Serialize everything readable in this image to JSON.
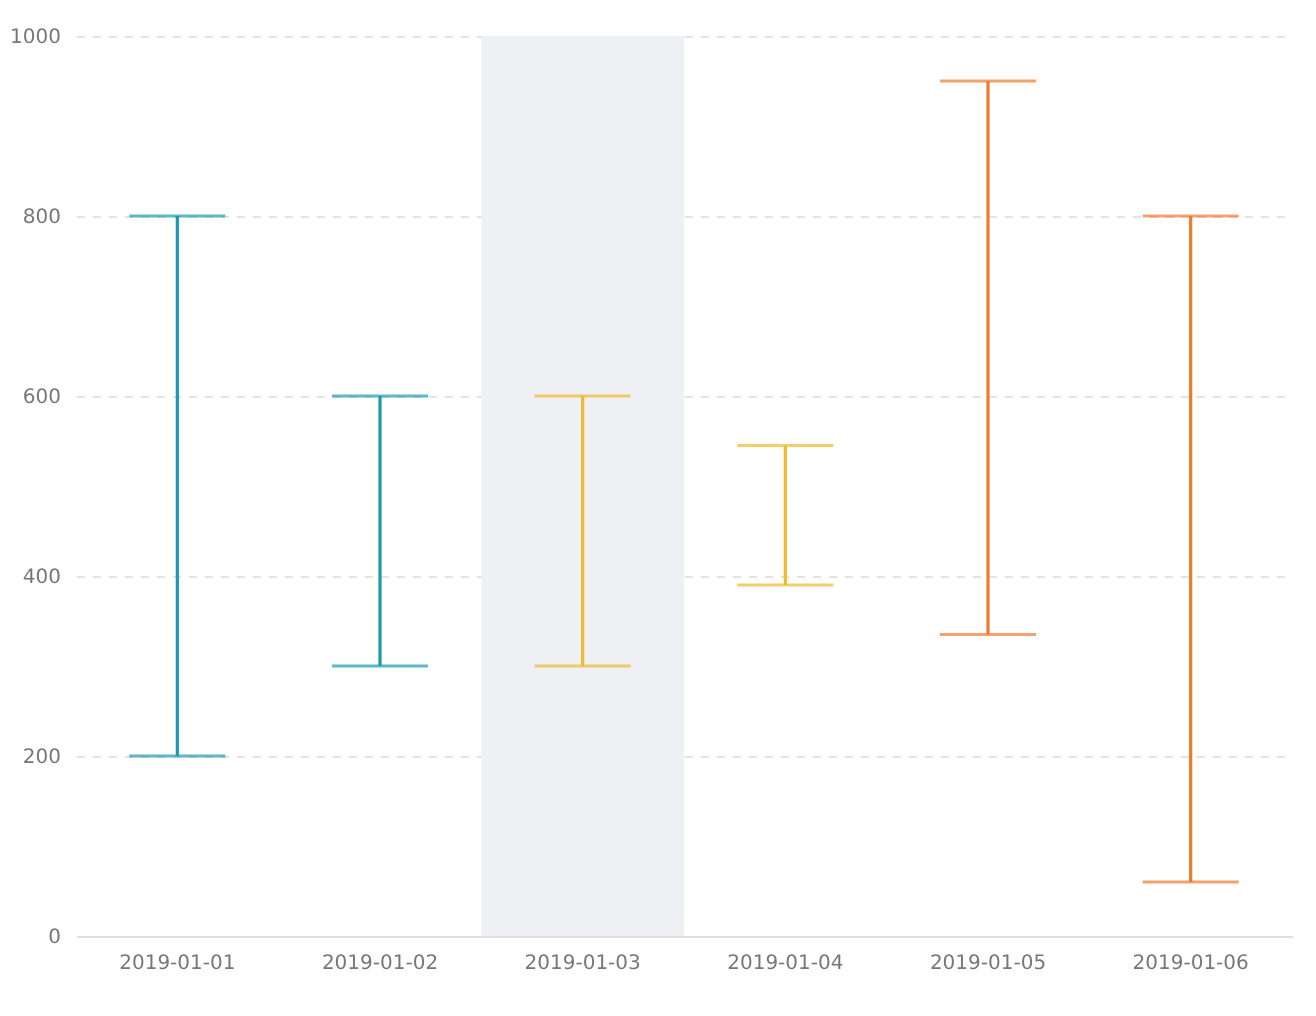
{
  "chart_data": {
    "type": "bar",
    "categories": [
      "2019-01-01",
      "2019-01-02",
      "2019-01-03",
      "2019-01-04",
      "2019-01-05",
      "2019-01-06"
    ],
    "base": [
      200,
      300,
      300,
      390,
      335,
      60
    ],
    "values": [
      600,
      300,
      300,
      155,
      615,
      740
    ],
    "colors": [
      "#1a9aaf",
      "#1a9aaf",
      "#f0b92f",
      "#f0b92f",
      "#ef7a2f",
      "#ef7a2f"
    ],
    "ylim": [
      0,
      1000
    ],
    "yticks": [
      0,
      200,
      400,
      600,
      800,
      1000
    ],
    "grid": "y",
    "legend": false,
    "bands": [
      {
        "axis": "x",
        "from": "2019-01-03",
        "to": "2019-01-03",
        "color": "#eef0f4"
      }
    ]
  }
}
